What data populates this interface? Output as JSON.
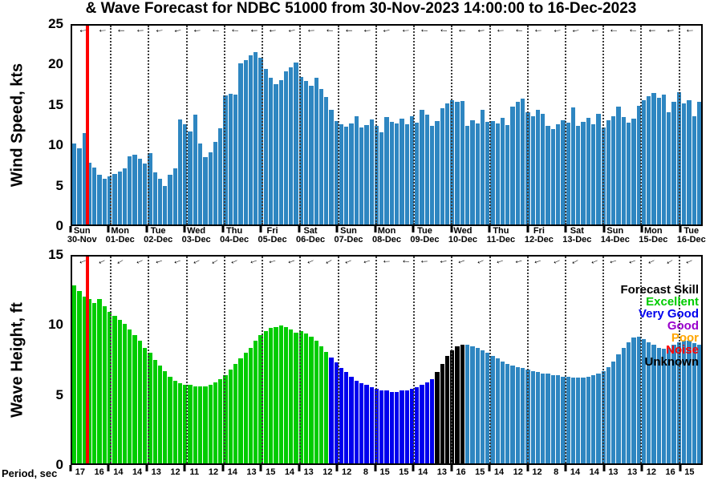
{
  "title": "& Wave Forecast for NDBC 51000 from 30-Nov-2023 14:00:00 to 16-Dec-2023",
  "colors": {
    "bar_default": "#2e86c1",
    "now_line": "#ff0000",
    "excellent": "#00cc00",
    "very_good": "#0000ee",
    "good": "#9900cc",
    "poor": "#ffa500",
    "noise": "#ff0000",
    "unknown": "#000000"
  },
  "legend": {
    "title": "Forecast Skill",
    "entries": [
      {
        "label": "Excellent",
        "color_key": "excellent"
      },
      {
        "label": "Very Good",
        "color_key": "very_good"
      },
      {
        "label": "Good",
        "color_key": "good"
      },
      {
        "label": "Poor",
        "color_key": "poor"
      },
      {
        "label": "Noise",
        "color_key": "noise"
      },
      {
        "label": "Unknown",
        "color_key": "unknown"
      }
    ]
  },
  "x_axis": {
    "span_days": 16.6,
    "now_bar_index": 3,
    "day_labels": [
      {
        "day": "Sun",
        "date": "30-Nov"
      },
      {
        "day": "Mon",
        "date": "01-Dec"
      },
      {
        "day": "Tue",
        "date": "02-Dec"
      },
      {
        "day": "Wed",
        "date": "03-Dec"
      },
      {
        "day": "Thu",
        "date": "04-Dec"
      },
      {
        "day": "Fri",
        "date": "05-Dec"
      },
      {
        "day": "Sat",
        "date": "06-Dec"
      },
      {
        "day": "Sun",
        "date": "07-Dec"
      },
      {
        "day": "Mon",
        "date": "08-Dec"
      },
      {
        "day": "Tue",
        "date": "09-Dec"
      },
      {
        "day": "Wed",
        "date": "10-Dec"
      },
      {
        "day": "Thu",
        "date": "11-Dec"
      },
      {
        "day": "Fri",
        "date": "12-Dec"
      },
      {
        "day": "Sat",
        "date": "13-Dec"
      },
      {
        "day": "Sun",
        "date": "14-Dec"
      },
      {
        "day": "Mon",
        "date": "15-Dec"
      },
      {
        "day": "Tue",
        "date": "16-Dec"
      }
    ]
  },
  "chart_data": [
    {
      "type": "bar",
      "name": "wind",
      "ylabel": "Wind Speed, kts",
      "ylim": [
        0,
        25
      ],
      "yticks": [
        0,
        5,
        10,
        15,
        20,
        25
      ],
      "arrow_angles_deg": [
        172,
        176,
        180,
        177,
        173,
        169,
        175,
        181,
        184,
        179,
        175,
        171,
        177,
        183,
        180,
        175,
        171,
        176,
        182,
        185,
        180,
        174,
        178,
        183,
        178,
        173,
        170,
        176,
        181,
        184,
        179,
        174,
        178
      ],
      "values": [
        10.2,
        9.6,
        11.5,
        7.8,
        7.2,
        6.3,
        5.7,
        6.1,
        6.4,
        6.7,
        7.1,
        8.6,
        8.8,
        8.3,
        7.7,
        9.0,
        6.6,
        5.7,
        4.8,
        6.3,
        7.1,
        13.2,
        12.6,
        11.7,
        13.8,
        10.2,
        8.5,
        9.1,
        10.4,
        12.1,
        16.2,
        16.4,
        16.3,
        20.3,
        20.7,
        21.3,
        21.7,
        21.0,
        19.6,
        18.4,
        17.6,
        18.1,
        19.3,
        19.8,
        20.4,
        18.6,
        18.0,
        17.4,
        18.4,
        17.0,
        16.0,
        14.4,
        13.0,
        12.6,
        12.3,
        12.7,
        13.6,
        12.2,
        12.5,
        13.2,
        12.4,
        11.6,
        13.5,
        12.9,
        12.7,
        13.3,
        12.6,
        13.6,
        12.8,
        14.4,
        13.8,
        12.4,
        13.0,
        14.6,
        15.2,
        15.6,
        15.4,
        15.5,
        12.4,
        13.1,
        12.7,
        14.4,
        12.9,
        13.0,
        12.7,
        13.4,
        12.5,
        14.8,
        15.4,
        15.8,
        14.1,
        13.6,
        14.4,
        13.9,
        12.4,
        12.0,
        12.6,
        13.1,
        12.8,
        14.7,
        12.4,
        12.9,
        13.4,
        12.6,
        13.9,
        12.2,
        13.1,
        13.6,
        14.8,
        13.5,
        12.8,
        13.3,
        14.9,
        15.6,
        16.1,
        16.5,
        15.9,
        16.3,
        14.1,
        15.4,
        16.6,
        15.2,
        15.6,
        13.6,
        15.4
      ]
    },
    {
      "type": "bar",
      "name": "wave",
      "ylabel": "Wave Height, ft",
      "ylim": [
        0,
        15
      ],
      "yticks": [
        0,
        5,
        10,
        15
      ],
      "arrow_angles_deg": [
        158,
        154,
        150,
        156,
        162,
        159,
        154,
        150,
        155,
        161,
        166,
        160,
        155,
        151,
        157,
        163,
        178,
        183,
        177,
        171,
        160,
        155,
        161,
        167,
        162,
        156,
        152,
        157,
        163,
        159,
        154,
        150,
        156
      ],
      "values": [
        12.9,
        12.5,
        12.1,
        11.9,
        11.6,
        11.9,
        11.4,
        11.0,
        10.7,
        10.4,
        10.1,
        9.7,
        9.3,
        8.9,
        8.4,
        8.0,
        7.5,
        7.1,
        6.7,
        6.3,
        6.0,
        5.8,
        5.7,
        5.7,
        5.6,
        5.6,
        5.6,
        5.7,
        5.9,
        6.1,
        6.4,
        6.8,
        7.2,
        7.6,
        8.0,
        8.4,
        8.9,
        9.3,
        9.6,
        9.8,
        9.9,
        10.0,
        9.9,
        9.7,
        9.5,
        9.6,
        9.4,
        9.2,
        8.9,
        8.5,
        8.1,
        7.7,
        7.3,
        6.9,
        6.6,
        6.3,
        6.0,
        5.8,
        5.7,
        5.5,
        5.4,
        5.3,
        5.3,
        5.2,
        5.2,
        5.3,
        5.3,
        5.4,
        5.5,
        5.7,
        5.9,
        6.1,
        6.6,
        7.2,
        7.8,
        8.2,
        8.5,
        8.6,
        8.6,
        8.5,
        8.4,
        8.2,
        8.0,
        7.8,
        7.6,
        7.4,
        7.2,
        7.1,
        7.0,
        6.9,
        6.8,
        6.7,
        6.6,
        6.5,
        6.5,
        6.4,
        6.4,
        6.3,
        6.3,
        6.2,
        6.2,
        6.2,
        6.3,
        6.4,
        6.5,
        6.7,
        7.0,
        7.4,
        7.9,
        8.4,
        8.8,
        9.1,
        9.2,
        9.0,
        8.8,
        8.6,
        8.4,
        8.3,
        8.4,
        8.6,
        8.8,
        8.9,
        8.9,
        8.7,
        8.6
      ],
      "skill_segments": [
        {
          "skill": "excellent",
          "from": 0,
          "to": 50
        },
        {
          "skill": "very_good",
          "from": 51,
          "to": 71
        },
        {
          "skill": "unknown",
          "from": 72,
          "to": 77
        },
        {
          "skill": "default",
          "from": 78,
          "to": 124
        }
      ],
      "period_label": "Period, sec",
      "periods_sec": [
        17,
        16,
        14,
        14,
        13,
        12,
        11,
        12,
        14,
        13,
        15,
        14,
        13,
        12,
        12,
        8,
        15,
        15,
        14,
        13,
        16,
        15,
        14,
        12,
        12,
        8,
        14,
        14,
        13,
        13,
        12,
        16,
        15
      ]
    }
  ]
}
